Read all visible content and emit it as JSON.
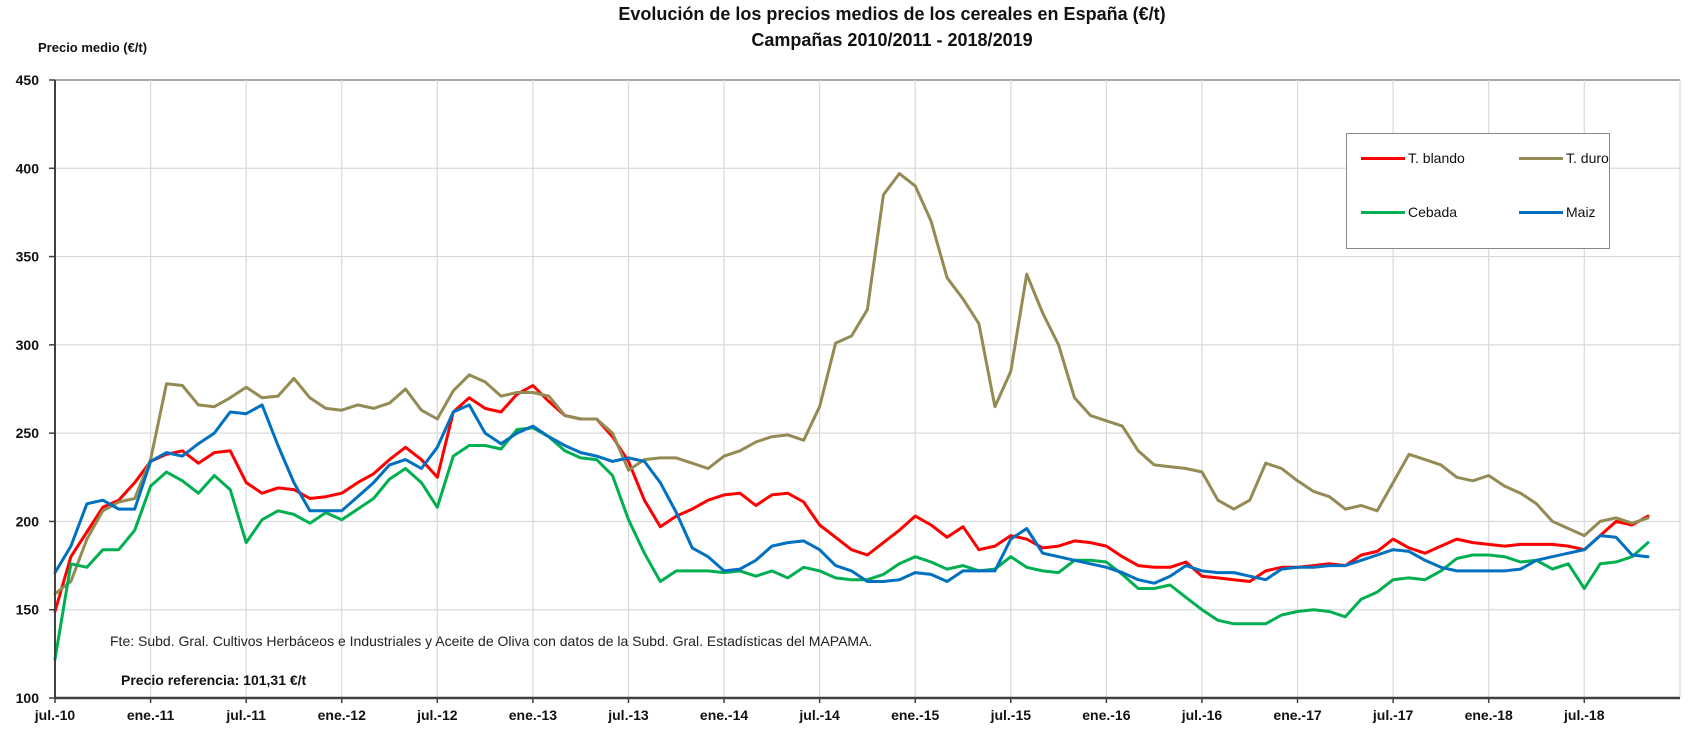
{
  "chart_data": {
    "type": "line",
    "title": "Evolución de los precios medios de los cereales en España (€/t)",
    "subtitle": "Campañas 2010/2011 - 2018/2019",
    "ylabel": "Precio medio (€/t)",
    "xlabel": "",
    "ylim": [
      100,
      450
    ],
    "yticks": [
      "100",
      "150",
      "200",
      "250",
      "300",
      "350",
      "400",
      "450"
    ],
    "xtick_labels": [
      "jul.-10",
      "ene.-11",
      "jul.-11",
      "ene.-12",
      "jul.-12",
      "ene.-13",
      "jul.-13",
      "ene.-14",
      "jul.-14",
      "ene.-15",
      "jul.-15",
      "ene.-16",
      "jul.-16",
      "ene.-17",
      "jul.-17",
      "ene.-18",
      "jul.-18"
    ],
    "grid": true,
    "legend_position": "top-right",
    "x": [
      "2010-07",
      "2010-08",
      "2010-09",
      "2010-10",
      "2010-11",
      "2010-12",
      "2011-01",
      "2011-02",
      "2011-03",
      "2011-04",
      "2011-05",
      "2011-06",
      "2011-07",
      "2011-08",
      "2011-09",
      "2011-10",
      "2011-11",
      "2011-12",
      "2012-01",
      "2012-02",
      "2012-03",
      "2012-04",
      "2012-05",
      "2012-06",
      "2012-07",
      "2012-08",
      "2012-09",
      "2012-10",
      "2012-11",
      "2012-12",
      "2013-01",
      "2013-02",
      "2013-03",
      "2013-04",
      "2013-05",
      "2013-06",
      "2013-07",
      "2013-08",
      "2013-09",
      "2013-10",
      "2013-11",
      "2013-12",
      "2014-01",
      "2014-02",
      "2014-03",
      "2014-04",
      "2014-05",
      "2014-06",
      "2014-07",
      "2014-08",
      "2014-09",
      "2014-10",
      "2014-11",
      "2014-12",
      "2015-01",
      "2015-02",
      "2015-03",
      "2015-04",
      "2015-05",
      "2015-06",
      "2015-07",
      "2015-08",
      "2015-09",
      "2015-10",
      "2015-11",
      "2015-12",
      "2016-01",
      "2016-02",
      "2016-03",
      "2016-04",
      "2016-05",
      "2016-06",
      "2016-07",
      "2016-08",
      "2016-09",
      "2016-10",
      "2016-11",
      "2016-12",
      "2017-01",
      "2017-02",
      "2017-03",
      "2017-04",
      "2017-05",
      "2017-06",
      "2017-07",
      "2017-08",
      "2017-09",
      "2017-10",
      "2017-11",
      "2017-12",
      "2018-01",
      "2018-02",
      "2018-03",
      "2018-04",
      "2018-05",
      "2018-06",
      "2018-07",
      "2018-08",
      "2018-09",
      "2018-10",
      "2018-11"
    ],
    "series": [
      {
        "name": "T. blando",
        "color": "#ff0000",
        "values": [
          149,
          180,
          194,
          208,
          212,
          222,
          234,
          238,
          240,
          233,
          239,
          240,
          222,
          216,
          219,
          218,
          213,
          214,
          216,
          222,
          227,
          235,
          242,
          235,
          225,
          262,
          270,
          264,
          262,
          272,
          277,
          268,
          260,
          258,
          258,
          248,
          234,
          212,
          197,
          203,
          207,
          212,
          215,
          216,
          209,
          215,
          216,
          211,
          198,
          191,
          184,
          181,
          188,
          195,
          203,
          198,
          191,
          197,
          184,
          186,
          192,
          190,
          185,
          186,
          189,
          188,
          186,
          180,
          175,
          174,
          174,
          177,
          169,
          168,
          167,
          166,
          172,
          174,
          174,
          175,
          176,
          175,
          181,
          183,
          190,
          185,
          182,
          186,
          190,
          188,
          187,
          186,
          187,
          187,
          187,
          186,
          184,
          192,
          200,
          198,
          203
        ]
      },
      {
        "name": "T. duro",
        "color": "#948a54",
        "values": [
          159,
          166,
          190,
          206,
          211,
          213,
          235,
          278,
          277,
          266,
          265,
          270,
          276,
          270,
          271,
          281,
          270,
          264,
          263,
          266,
          264,
          267,
          275,
          263,
          258,
          274,
          283,
          279,
          271,
          273,
          273,
          271,
          260,
          258,
          258,
          250,
          229,
          235,
          236,
          236,
          233,
          230,
          237,
          240,
          245,
          248,
          249,
          246,
          265,
          301,
          305,
          320,
          385,
          397,
          390,
          370,
          338,
          326,
          312,
          265,
          285,
          340,
          318,
          300,
          270,
          260,
          257,
          254,
          240,
          232,
          231,
          230,
          228,
          212,
          207,
          212,
          233,
          230,
          223,
          217,
          214,
          207,
          209,
          206,
          222,
          238,
          235,
          232,
          225,
          223,
          226,
          220,
          216,
          210,
          200,
          196,
          192,
          200,
          202,
          199,
          202
        ]
      },
      {
        "name": "Cebada",
        "color": "#00b050",
        "values": [
          122,
          176,
          174,
          184,
          184,
          195,
          220,
          228,
          223,
          216,
          226,
          218,
          188,
          201,
          206,
          204,
          199,
          205,
          201,
          207,
          213,
          224,
          230,
          222,
          208,
          237,
          243,
          243,
          241,
          252,
          253,
          248,
          240,
          236,
          235,
          226,
          201,
          182,
          166,
          172,
          172,
          172,
          171,
          172,
          169,
          172,
          168,
          174,
          172,
          168,
          167,
          167,
          170,
          176,
          180,
          177,
          173,
          175,
          172,
          173,
          180,
          174,
          172,
          171,
          178,
          178,
          177,
          170,
          162,
          162,
          164,
          157,
          150,
          144,
          142,
          142,
          142,
          147,
          149,
          150,
          149,
          146,
          156,
          160,
          167,
          168,
          167,
          172,
          179,
          181,
          181,
          180,
          177,
          178,
          173,
          176,
          162,
          176,
          177,
          180,
          188
        ]
      },
      {
        "name": "Maiz",
        "color": "#0070c0",
        "values": [
          171,
          186,
          210,
          212,
          207,
          207,
          234,
          239,
          237,
          244,
          250,
          262,
          261,
          266,
          243,
          222,
          206,
          206,
          206,
          214,
          222,
          232,
          235,
          230,
          242,
          262,
          266,
          250,
          244,
          250,
          254,
          248,
          243,
          239,
          237,
          234,
          236,
          234,
          222,
          205,
          185,
          180,
          172,
          173,
          178,
          186,
          188,
          189,
          184,
          175,
          172,
          166,
          166,
          167,
          171,
          170,
          166,
          172,
          172,
          172,
          190,
          196,
          182,
          180,
          178,
          176,
          174,
          171,
          167,
          165,
          169,
          175,
          172,
          171,
          171,
          169,
          167,
          173,
          174,
          174,
          175,
          175,
          178,
          181,
          184,
          183,
          178,
          174,
          172,
          172,
          172,
          172,
          173,
          178,
          180,
          182,
          184,
          192,
          191,
          181,
          180
        ]
      }
    ]
  },
  "annotations": {
    "source_note": "Fte: Subd. Gral. Cultivos Herbáceos e Industriales y Aceite de Oliva con datos de la Subd. Gral. Estadísticas del MAPAMA.",
    "reference_price": "Precio referencia: 101,31 €/t"
  }
}
